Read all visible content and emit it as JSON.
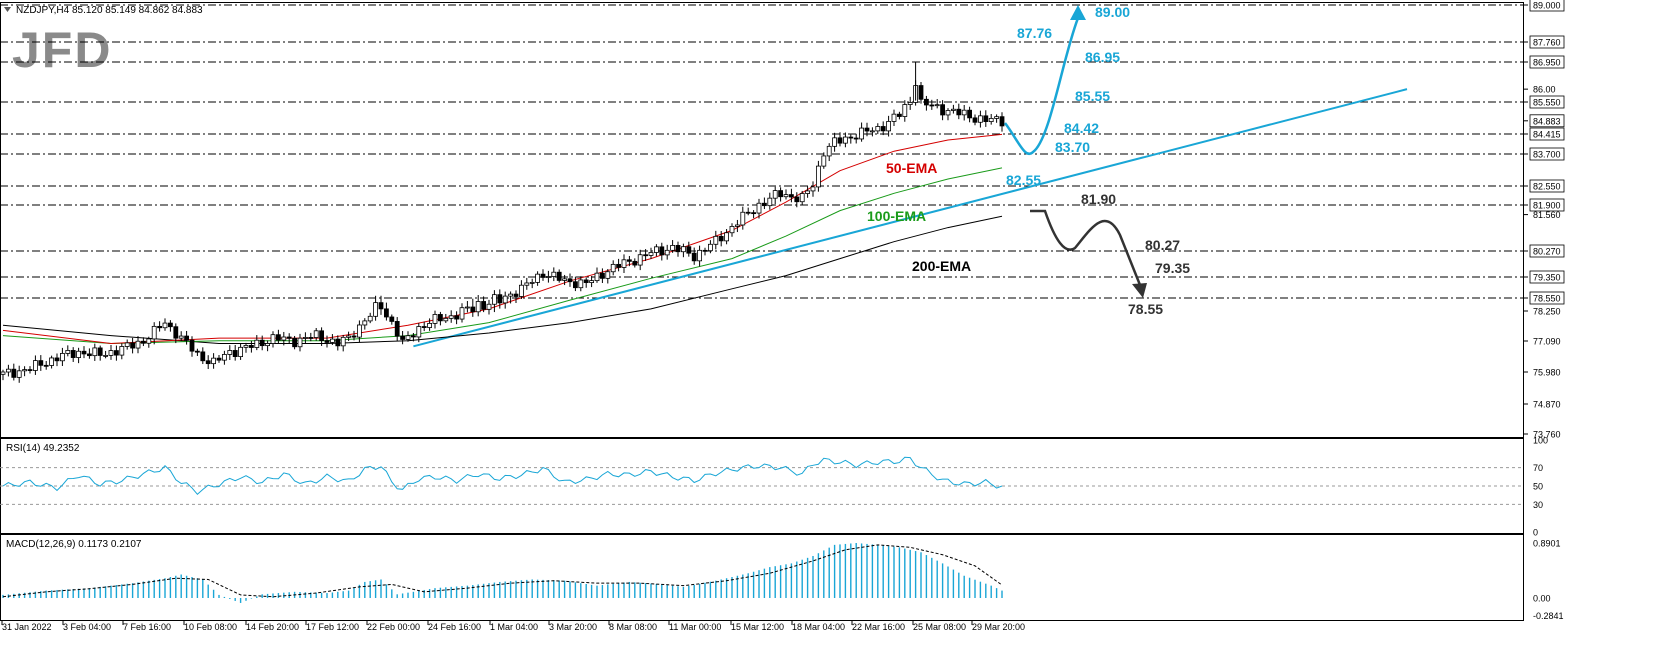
{
  "chart_data": [
    {
      "type": "candlestick",
      "symbol_header": "NZDJPY,H4  85.120 85.149 84.862 84.883",
      "logo_text": "JFD",
      "y_ticks": [
        "89.000",
        "87.760",
        "86.950",
        "86.00",
        "85.550",
        "84.883",
        "84.415",
        "83.700",
        "82.550",
        "81.900",
        "81.560",
        "80.270",
        "79.350",
        "78.550",
        "78.250",
        "77.090",
        "75.980",
        "74.870",
        "73.760"
      ],
      "x_ticks": [
        "31 Jan 2022",
        "3 Feb 04:00",
        "7 Feb 16:00",
        "10 Feb 08:00",
        "14 Feb 20:00",
        "17 Feb 12:00",
        "22 Feb 00:00",
        "24 Feb 16:00",
        "1 Mar 04:00",
        "3 Mar 20:00",
        "8 Mar 08:00",
        "11 Mar 00:00",
        "15 Mar 12:00",
        "18 Mar 04:00",
        "22 Mar 16:00",
        "25 Mar 08:00",
        "29 Mar 20:00"
      ],
      "ylim": [
        73.76,
        89.0
      ],
      "close_path": [
        [
          0,
          75.9
        ],
        [
          5,
          76.1
        ],
        [
          10,
          76.5
        ],
        [
          14,
          76.7
        ],
        [
          18,
          76.6
        ],
        [
          22,
          76.8
        ],
        [
          26,
          77.1
        ],
        [
          30,
          77.8
        ],
        [
          33,
          77.2
        ],
        [
          36,
          76.6
        ],
        [
          39,
          76.3
        ],
        [
          42,
          76.7
        ],
        [
          46,
          76.9
        ],
        [
          50,
          77.2
        ],
        [
          54,
          77.1
        ],
        [
          58,
          77.3
        ],
        [
          62,
          77.0
        ],
        [
          64,
          77.2
        ],
        [
          67,
          77.9
        ],
        [
          70,
          78.4
        ],
        [
          72,
          77.8
        ],
        [
          74,
          77.0
        ],
        [
          77,
          77.6
        ],
        [
          80,
          77.9
        ],
        [
          84,
          78.1
        ],
        [
          88,
          78.4
        ],
        [
          92,
          78.5
        ],
        [
          96,
          78.9
        ],
        [
          100,
          79.5
        ],
        [
          104,
          79.2
        ],
        [
          108,
          79.1
        ],
        [
          112,
          79.6
        ],
        [
          116,
          79.9
        ],
        [
          120,
          80.2
        ],
        [
          124,
          80.4
        ],
        [
          128,
          80.1
        ],
        [
          132,
          80.6
        ],
        [
          136,
          81.3
        ],
        [
          140,
          81.9
        ],
        [
          144,
          82.3
        ],
        [
          148,
          82.1
        ],
        [
          150,
          82.6
        ],
        [
          152,
          83.8
        ],
        [
          154,
          84.1
        ],
        [
          158,
          84.4
        ],
        [
          162,
          84.6
        ],
        [
          166,
          85.1
        ],
        [
          168,
          85.6
        ],
        [
          169,
          86.3
        ],
        [
          170,
          85.5
        ],
        [
          174,
          85.3
        ],
        [
          178,
          85.1
        ],
        [
          182,
          84.9
        ],
        [
          185,
          84.9
        ]
      ],
      "ema50": [
        [
          0,
          77.5
        ],
        [
          20,
          77.0
        ],
        [
          40,
          77.2
        ],
        [
          60,
          77.2
        ],
        [
          75,
          77.7
        ],
        [
          90,
          78.3
        ],
        [
          105,
          79.2
        ],
        [
          120,
          80.0
        ],
        [
          135,
          81.0
        ],
        [
          145,
          82.0
        ],
        [
          155,
          83.1
        ],
        [
          165,
          83.8
        ],
        [
          175,
          84.2
        ],
        [
          185,
          84.4
        ]
      ],
      "ema100": [
        [
          0,
          77.3
        ],
        [
          20,
          77.0
        ],
        [
          40,
          77.1
        ],
        [
          60,
          77.1
        ],
        [
          75,
          77.3
        ],
        [
          90,
          77.8
        ],
        [
          105,
          78.5
        ],
        [
          120,
          79.3
        ],
        [
          135,
          80.0
        ],
        [
          145,
          80.8
        ],
        [
          155,
          81.7
        ],
        [
          165,
          82.3
        ],
        [
          175,
          82.8
        ],
        [
          185,
          83.2
        ]
      ],
      "ema200": [
        [
          0,
          77.7
        ],
        [
          20,
          77.3
        ],
        [
          40,
          77.0
        ],
        [
          60,
          77.0
        ],
        [
          75,
          77.1
        ],
        [
          90,
          77.4
        ],
        [
          105,
          77.8
        ],
        [
          120,
          78.3
        ],
        [
          135,
          78.9
        ],
        [
          145,
          79.4
        ],
        [
          155,
          80.0
        ],
        [
          165,
          80.6
        ],
        [
          175,
          81.1
        ],
        [
          185,
          81.5
        ]
      ],
      "trendline": {
        "from": [
          76,
          76.9
        ],
        "to": [
          260,
          86.0
        ]
      },
      "resistance_levels": [
        89.0,
        87.76,
        86.95,
        85.55,
        84.415,
        83.7,
        82.55,
        81.9,
        80.27,
        79.35,
        78.55
      ],
      "ema_labels": [
        "50-EMA",
        "100-EMA",
        "200-EMA"
      ],
      "ema_colors": {
        "ema50": "#d40000",
        "ema100": "#1a9b1a",
        "ema200": "#000000"
      },
      "bull_scenario_labels": [
        "83.70",
        "84.42",
        "85.55",
        "86.95",
        "87.76",
        "89.00"
      ],
      "bear_scenario_labels": [
        "81.90",
        "80.27",
        "79.35",
        "78.55"
      ],
      "accent_color": "#19a6d6"
    },
    {
      "type": "line",
      "name_header": "RSI(14) 49.2352",
      "y_ticks": [
        "100",
        "70",
        "50",
        "30",
        "0"
      ],
      "levels": [
        70,
        50,
        30
      ],
      "series": [
        [
          0,
          50
        ],
        [
          5,
          54
        ],
        [
          10,
          48
        ],
        [
          14,
          62
        ],
        [
          18,
          52
        ],
        [
          22,
          56
        ],
        [
          26,
          63
        ],
        [
          30,
          70
        ],
        [
          33,
          54
        ],
        [
          36,
          44
        ],
        [
          40,
          52
        ],
        [
          44,
          60
        ],
        [
          48,
          54
        ],
        [
          52,
          63
        ],
        [
          56,
          52
        ],
        [
          60,
          60
        ],
        [
          64,
          55
        ],
        [
          67,
          68
        ],
        [
          70,
          72
        ],
        [
          72,
          54
        ],
        [
          74,
          46
        ],
        [
          77,
          58
        ],
        [
          80,
          60
        ],
        [
          84,
          56
        ],
        [
          88,
          63
        ],
        [
          92,
          58
        ],
        [
          96,
          62
        ],
        [
          100,
          69
        ],
        [
          104,
          54
        ],
        [
          108,
          57
        ],
        [
          112,
          63
        ],
        [
          116,
          62
        ],
        [
          120,
          66
        ],
        [
          124,
          60
        ],
        [
          128,
          56
        ],
        [
          132,
          64
        ],
        [
          136,
          69
        ],
        [
          140,
          72
        ],
        [
          144,
          70
        ],
        [
          148,
          63
        ],
        [
          150,
          74
        ],
        [
          152,
          78
        ],
        [
          155,
          76
        ],
        [
          158,
          73
        ],
        [
          162,
          76
        ],
        [
          166,
          77
        ],
        [
          168,
          80
        ],
        [
          170,
          70
        ],
        [
          174,
          56
        ],
        [
          178,
          52
        ],
        [
          182,
          54
        ],
        [
          185,
          49
        ]
      ]
    },
    {
      "type": "bar",
      "name_header": "MACD(12,26,9) 0.1173 0.2107",
      "y_ticks": [
        "0.8901",
        "0.00",
        "-0.2841"
      ],
      "ylim": [
        -0.2841,
        0.8901
      ],
      "histogram": [
        [
          0,
          0.05
        ],
        [
          8,
          0.12
        ],
        [
          16,
          0.16
        ],
        [
          24,
          0.24
        ],
        [
          30,
          0.32
        ],
        [
          33,
          0.38
        ],
        [
          37,
          0.3
        ],
        [
          40,
          0.05
        ],
        [
          44,
          -0.08
        ],
        [
          48,
          0.06
        ],
        [
          54,
          0.1
        ],
        [
          60,
          0.08
        ],
        [
          64,
          0.12
        ],
        [
          67,
          0.26
        ],
        [
          70,
          0.3
        ],
        [
          73,
          0.06
        ],
        [
          76,
          0.1
        ],
        [
          80,
          0.16
        ],
        [
          86,
          0.2
        ],
        [
          92,
          0.26
        ],
        [
          98,
          0.3
        ],
        [
          104,
          0.28
        ],
        [
          110,
          0.2
        ],
        [
          116,
          0.26
        ],
        [
          122,
          0.22
        ],
        [
          126,
          0.18
        ],
        [
          132,
          0.28
        ],
        [
          138,
          0.4
        ],
        [
          142,
          0.5
        ],
        [
          146,
          0.56
        ],
        [
          150,
          0.68
        ],
        [
          154,
          0.86
        ],
        [
          158,
          0.89
        ],
        [
          162,
          0.86
        ],
        [
          166,
          0.82
        ],
        [
          170,
          0.74
        ],
        [
          174,
          0.56
        ],
        [
          178,
          0.36
        ],
        [
          183,
          0.2
        ],
        [
          185,
          0.12
        ]
      ],
      "signal": [
        [
          0,
          0.02
        ],
        [
          8,
          0.1
        ],
        [
          16,
          0.15
        ],
        [
          24,
          0.22
        ],
        [
          32,
          0.32
        ],
        [
          38,
          0.3
        ],
        [
          44,
          0.05
        ],
        [
          50,
          0.02
        ],
        [
          58,
          0.08
        ],
        [
          66,
          0.18
        ],
        [
          72,
          0.22
        ],
        [
          78,
          0.1
        ],
        [
          86,
          0.16
        ],
        [
          94,
          0.24
        ],
        [
          102,
          0.28
        ],
        [
          110,
          0.24
        ],
        [
          118,
          0.24
        ],
        [
          126,
          0.2
        ],
        [
          134,
          0.28
        ],
        [
          142,
          0.4
        ],
        [
          150,
          0.6
        ],
        [
          156,
          0.78
        ],
        [
          162,
          0.86
        ],
        [
          168,
          0.82
        ],
        [
          174,
          0.7
        ],
        [
          180,
          0.52
        ],
        [
          185,
          0.21
        ]
      ]
    }
  ]
}
